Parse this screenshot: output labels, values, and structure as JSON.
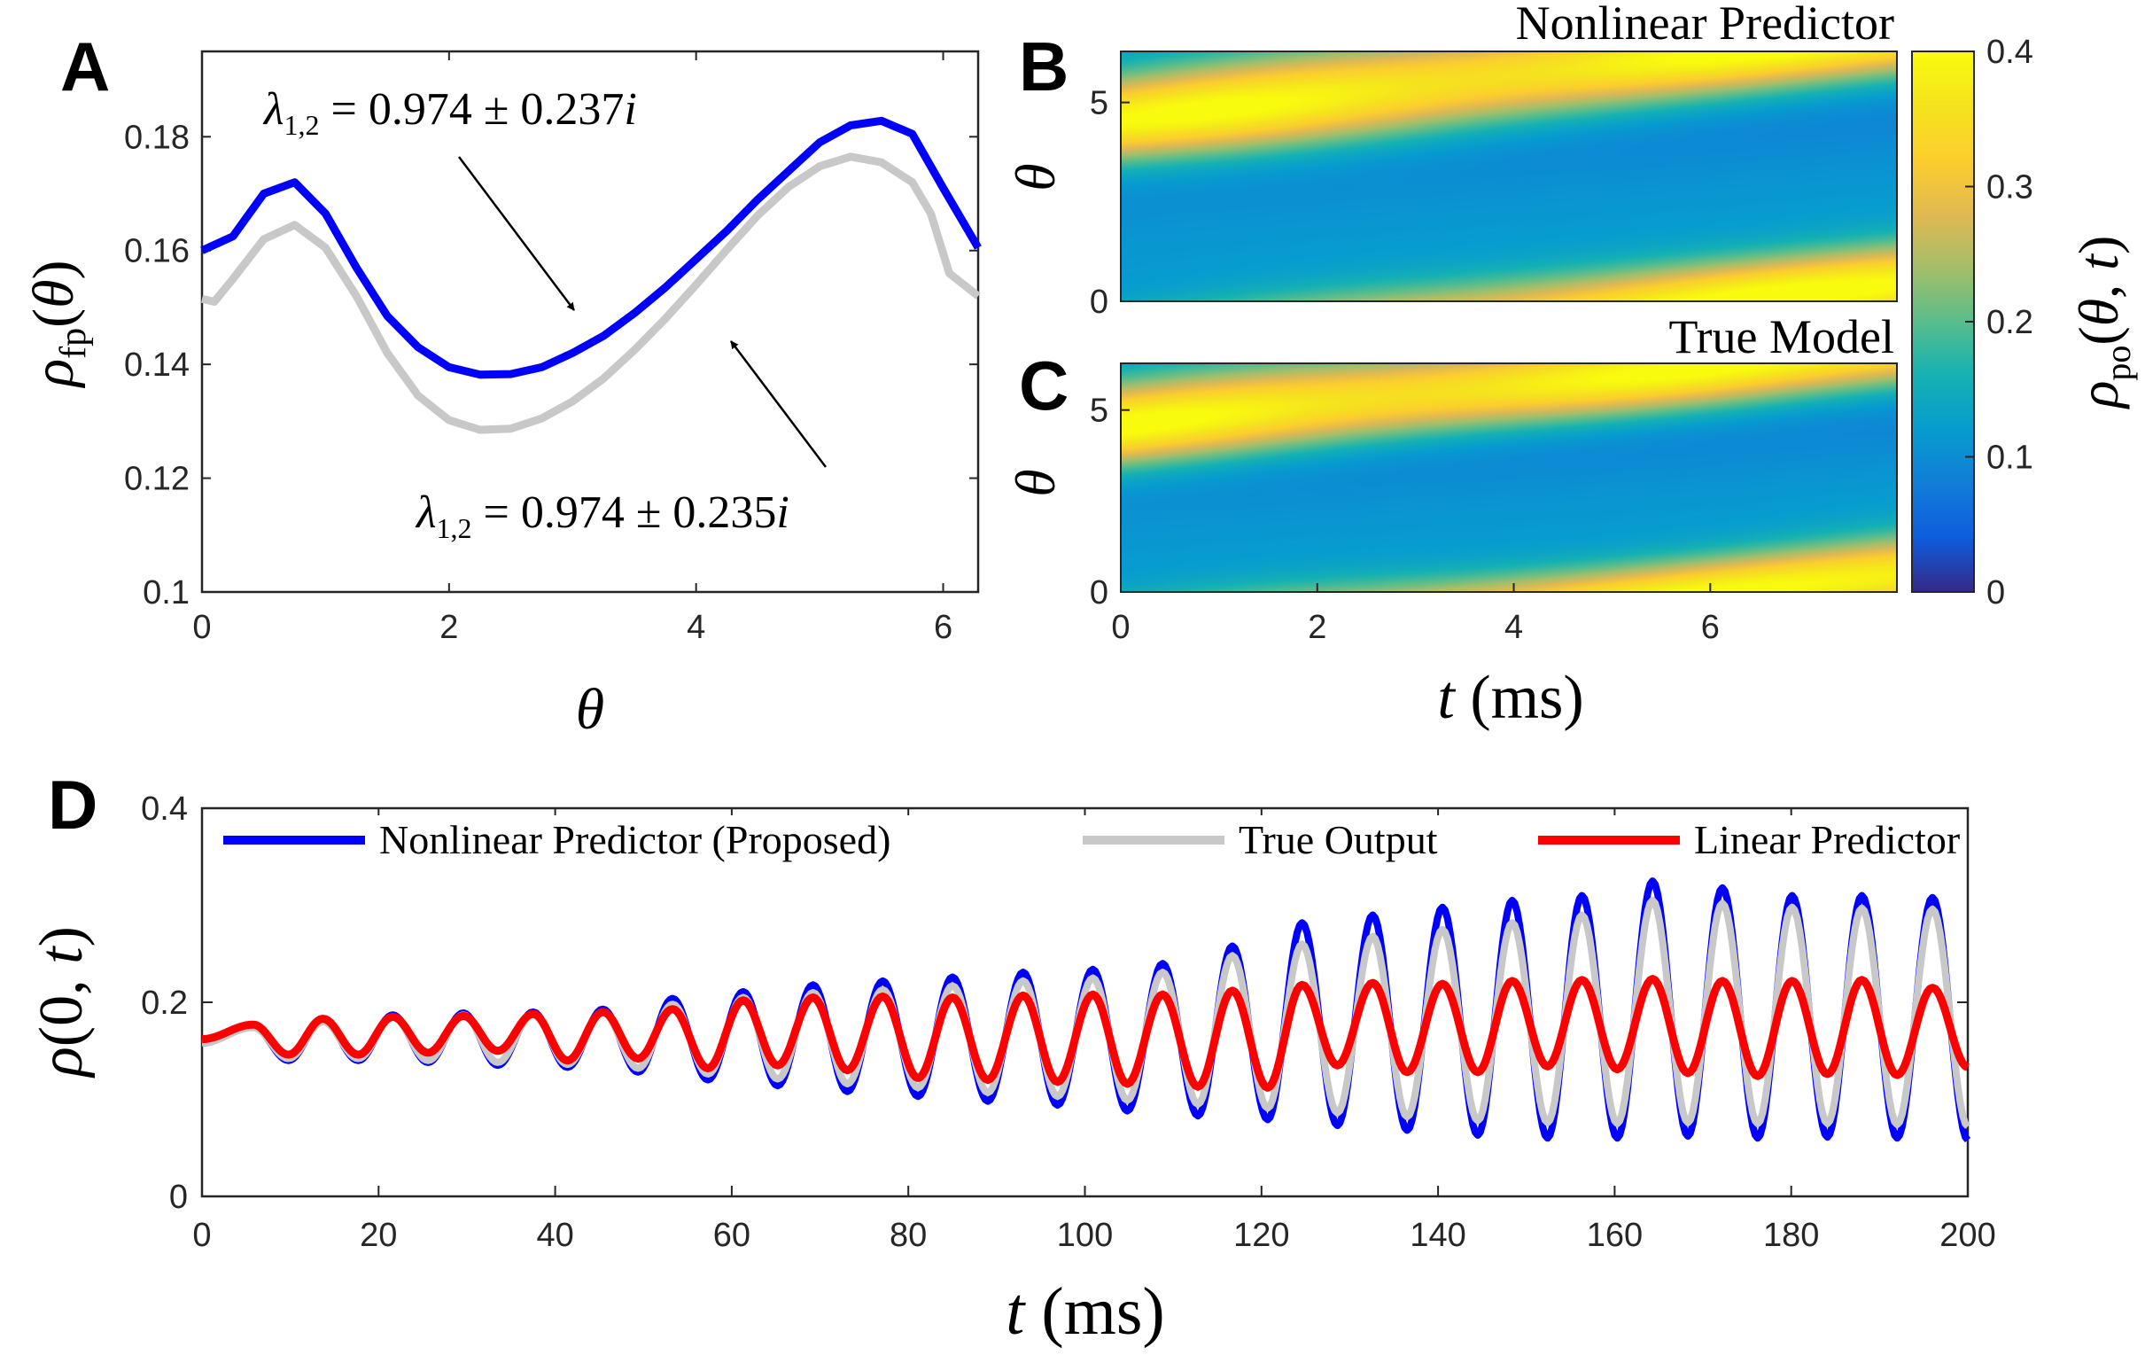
{
  "colors": {
    "nonlinear": "#0000ff",
    "true_output": "#c8c8c8",
    "linear": "#ff0000",
    "axes": "#262626"
  },
  "colormap": "parula",
  "chart_data": [
    {
      "panel": "A",
      "type": "line",
      "xlabel": "θ",
      "ylabel": "ρ_fp(θ)",
      "xlim": [
        0,
        6.2832
      ],
      "ylim": [
        0.1,
        0.195
      ],
      "xticks": [
        "0",
        "2",
        "4",
        "6"
      ],
      "yticks": [
        "0.1",
        "0.12",
        "0.14",
        "0.16",
        "0.18"
      ],
      "series": [
        {
          "key": "nonlinear",
          "x": [
            0,
            0.25,
            0.5,
            0.75,
            1.0,
            1.25,
            1.5,
            1.75,
            2.0,
            2.25,
            2.5,
            2.75,
            3.0,
            3.25,
            3.5,
            3.75,
            4.0,
            4.25,
            4.5,
            4.75,
            5.0,
            5.25,
            5.5,
            5.75,
            6.0,
            6.2832
          ],
          "y": [
            0.16,
            0.1625,
            0.17,
            0.172,
            0.1665,
            0.157,
            0.1485,
            0.143,
            0.1395,
            0.1382,
            0.1383,
            0.1395,
            0.142,
            0.145,
            0.149,
            0.1535,
            0.1585,
            0.1635,
            0.169,
            0.174,
            0.179,
            0.182,
            0.1828,
            0.1805,
            0.171,
            0.1605
          ]
        },
        {
          "key": "true_output",
          "x": [
            0,
            0.1,
            0.25,
            0.5,
            0.75,
            1.0,
            1.25,
            1.5,
            1.75,
            2.0,
            2.25,
            2.5,
            2.75,
            3.0,
            3.25,
            3.5,
            3.75,
            4.0,
            4.25,
            4.5,
            4.75,
            5.0,
            5.25,
            5.5,
            5.75,
            5.9,
            6.05,
            6.2832
          ],
          "y": [
            0.1515,
            0.151,
            0.155,
            0.162,
            0.1645,
            0.1605,
            0.152,
            0.142,
            0.1345,
            0.1302,
            0.1285,
            0.1287,
            0.1305,
            0.1335,
            0.1375,
            0.1425,
            0.148,
            0.154,
            0.1602,
            0.1662,
            0.1712,
            0.1748,
            0.1765,
            0.1755,
            0.172,
            0.1665,
            0.156,
            0.152
          ]
        }
      ],
      "annotations": [
        {
          "text": "λ_{1,2} = 0.974 ± 0.237i",
          "points_to": "nonlinear"
        },
        {
          "text": "λ_{1,2} = 0.974 ± 0.235i",
          "points_to": "true_output"
        }
      ]
    },
    {
      "panel": "B",
      "type": "heatmap",
      "title": "Nonlinear Predictor",
      "ylabel": "θ",
      "xlim": [
        0,
        7.9
      ],
      "ylim": [
        0,
        6.2832
      ],
      "yticks": [
        "0",
        "5"
      ],
      "note": "traveling density peak along θ ≈ 4.6 + 0.26 t (mod 2π)",
      "clim": [
        0,
        0.4
      ]
    },
    {
      "panel": "C",
      "type": "heatmap",
      "title": "True Model",
      "xlabel": "t (ms)",
      "ylabel": "θ",
      "xlim": [
        0,
        7.9
      ],
      "ylim": [
        0,
        6.2832
      ],
      "xticks": [
        "0",
        "2",
        "4",
        "6"
      ],
      "yticks": [
        "0",
        "5"
      ],
      "clim": [
        0,
        0.4
      ]
    },
    {
      "panel": "colorbar",
      "type": "heatmap",
      "label": "ρ_po(θ, t)",
      "ticks": [
        "0",
        "0.1",
        "0.2",
        "0.3",
        "0.4"
      ],
      "range": [
        0,
        0.4
      ]
    },
    {
      "panel": "D",
      "type": "line",
      "xlabel": "t (ms)",
      "ylabel": "ρ(0, t)",
      "xlim": [
        0,
        200
      ],
      "ylim": [
        0,
        0.4
      ],
      "xticks": [
        "0",
        "20",
        "40",
        "60",
        "80",
        "100",
        "120",
        "140",
        "160",
        "180",
        "200"
      ],
      "yticks": [
        "0",
        "0.2",
        "0.4"
      ],
      "legend": {
        "placement": "top",
        "entries": [
          "Nonlinear Predictor (Proposed)",
          "True Output",
          "Linear Predictor"
        ]
      },
      "series": [
        {
          "key": "nonlinear",
          "name": "Nonlinear Predictor (Proposed)",
          "peak_t": [
            5.8,
            13.7,
            21.6,
            29.6,
            37.5,
            45.4,
            53.3,
            61.3,
            69.2,
            77.1,
            85.0,
            93.0,
            100.9,
            108.8,
            116.7,
            124.6,
            132.6,
            140.5,
            148.4,
            156.3,
            164.3,
            172.2,
            180.1,
            188.0,
            196.0
          ],
          "peak_y": [
            0.175,
            0.182,
            0.187,
            0.189,
            0.19,
            0.193,
            0.204,
            0.211,
            0.218,
            0.222,
            0.226,
            0.231,
            0.234,
            0.24,
            0.258,
            0.282,
            0.29,
            0.298,
            0.305,
            0.31,
            0.325,
            0.318,
            0.31,
            0.31,
            0.308
          ],
          "trough_t": [
            9.8,
            17.7,
            25.6,
            33.5,
            41.4,
            49.4,
            57.3,
            65.2,
            73.1,
            81.1,
            89.0,
            96.9,
            104.8,
            112.8,
            120.7,
            128.6,
            136.5,
            144.5,
            152.4,
            160.3,
            168.3,
            176.2,
            184.1,
            192.0,
            200.0
          ],
          "trough_y": [
            0.14,
            0.14,
            0.138,
            0.135,
            0.133,
            0.128,
            0.12,
            0.114,
            0.108,
            0.103,
            0.098,
            0.094,
            0.088,
            0.083,
            0.079,
            0.073,
            0.068,
            0.063,
            0.06,
            0.06,
            0.062,
            0.06,
            0.061,
            0.06,
            0.058
          ]
        },
        {
          "key": "true_output",
          "name": "True Output",
          "peak_t": [
            5.8,
            13.7,
            21.6,
            29.6,
            37.5,
            45.4,
            53.3,
            61.3,
            69.2,
            77.1,
            85.0,
            93.0,
            100.9,
            108.8,
            116.7,
            124.6,
            132.6,
            140.5,
            148.4,
            156.3,
            164.3,
            172.2,
            180.1,
            188.0,
            196.0
          ],
          "peak_y": [
            0.174,
            0.18,
            0.185,
            0.187,
            0.188,
            0.19,
            0.198,
            0.205,
            0.21,
            0.213,
            0.217,
            0.222,
            0.225,
            0.231,
            0.248,
            0.26,
            0.268,
            0.275,
            0.282,
            0.29,
            0.305,
            0.302,
            0.298,
            0.297,
            0.296
          ],
          "trough_t": [
            9.8,
            17.7,
            25.6,
            33.5,
            41.4,
            49.4,
            57.3,
            65.2,
            73.1,
            81.1,
            89.0,
            96.9,
            104.8,
            112.8,
            120.7,
            128.6,
            136.5,
            144.5,
            152.4,
            160.3,
            168.3,
            176.2,
            184.1,
            192.0,
            200.0
          ],
          "trough_y": [
            0.142,
            0.142,
            0.14,
            0.138,
            0.136,
            0.132,
            0.126,
            0.121,
            0.116,
            0.112,
            0.107,
            0.103,
            0.099,
            0.095,
            0.091,
            0.086,
            0.082,
            0.078,
            0.076,
            0.075,
            0.076,
            0.075,
            0.075,
            0.074,
            0.072
          ]
        },
        {
          "key": "linear",
          "name": "Linear Predictor",
          "peak_t": [
            5.8,
            13.7,
            21.6,
            29.6,
            37.5,
            45.4,
            53.3,
            61.3,
            69.2,
            77.1,
            85.0,
            93.0,
            100.9,
            108.8,
            116.7,
            124.6,
            132.6,
            140.5,
            148.4,
            156.3,
            164.3,
            172.2,
            180.1,
            188.0,
            196.0
          ],
          "peak_y": [
            0.177,
            0.183,
            0.185,
            0.186,
            0.188,
            0.19,
            0.193,
            0.202,
            0.205,
            0.206,
            0.205,
            0.207,
            0.208,
            0.208,
            0.212,
            0.218,
            0.22,
            0.219,
            0.222,
            0.223,
            0.224,
            0.222,
            0.222,
            0.223,
            0.215
          ],
          "trough_t": [
            9.8,
            17.7,
            25.6,
            33.5,
            41.4,
            49.4,
            57.3,
            65.2,
            73.1,
            81.1,
            89.0,
            96.9,
            104.8,
            112.8,
            120.7,
            128.6,
            136.5,
            144.5,
            152.4,
            160.3,
            168.3,
            176.2,
            184.1,
            192.0,
            200.0
          ],
          "trough_y": [
            0.146,
            0.146,
            0.148,
            0.15,
            0.14,
            0.142,
            0.132,
            0.135,
            0.13,
            0.122,
            0.12,
            0.118,
            0.116,
            0.113,
            0.112,
            0.135,
            0.128,
            0.128,
            0.134,
            0.131,
            0.127,
            0.124,
            0.126,
            0.125,
            0.133
          ]
        }
      ]
    }
  ]
}
